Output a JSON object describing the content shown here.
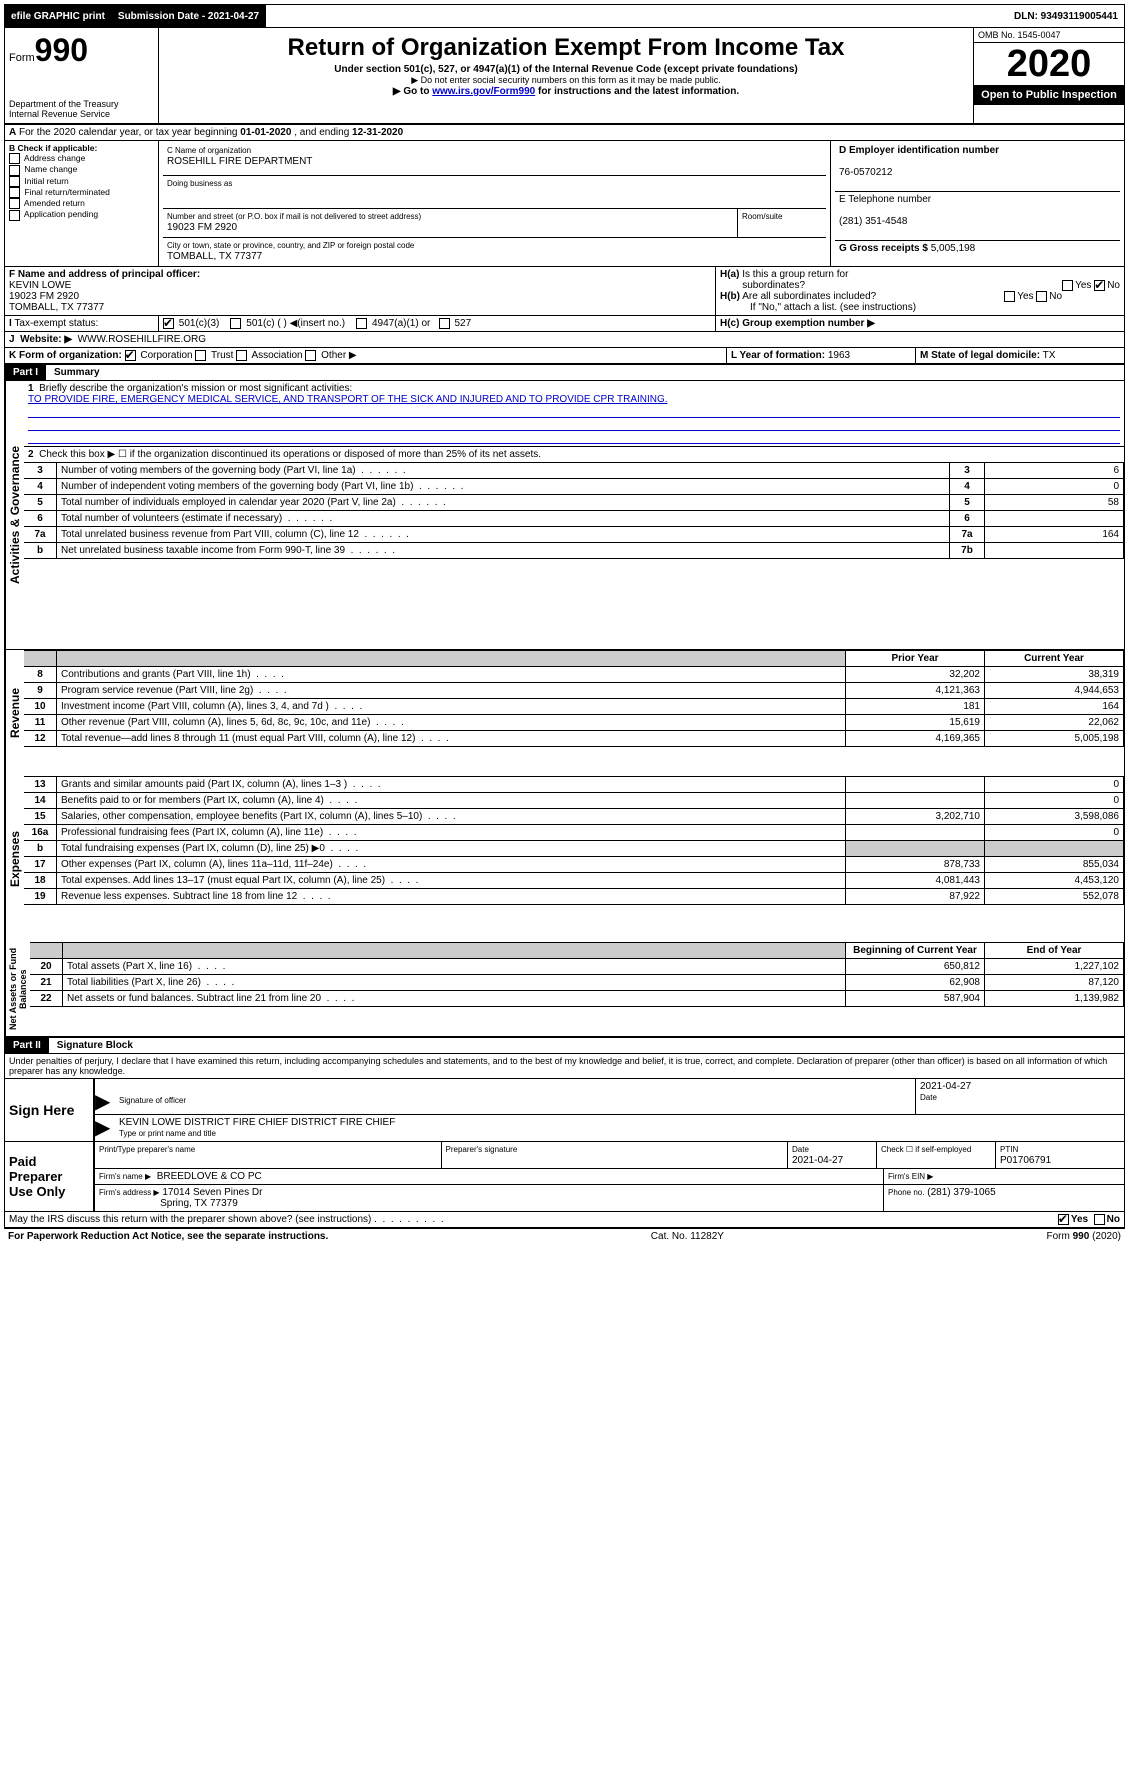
{
  "topbar": {
    "efile": "efile GRAPHIC print",
    "submission_label": "Submission Date - 2021-04-27",
    "dln": "DLN: 93493119005441"
  },
  "header": {
    "form_prefix": "Form",
    "form_number": "990",
    "dept": "Department of the Treasury",
    "irs": "Internal Revenue Service",
    "title": "Return of Organization Exempt From Income Tax",
    "sub1": "Under section 501(c), 527, or 4947(a)(1) of the Internal Revenue Code (except private foundations)",
    "sub2": "▶ Do not enter social security numbers on this form as it may be made public.",
    "sub3_pre": "▶ Go to ",
    "sub3_link": "www.irs.gov/Form990",
    "sub3_post": " for instructions and the latest information.",
    "omb": "OMB No. 1545-0047",
    "year": "2020",
    "open": "Open to Public Inspection"
  },
  "periodA": {
    "text_pre": "For the 2020 calendar year, or tax year beginning ",
    "begin": "01-01-2020",
    "mid": " , and ending ",
    "end": "12-31-2020"
  },
  "boxB": {
    "label": "B Check if applicable:",
    "items": [
      "Address change",
      "Name change",
      "Initial return",
      "Final return/terminated",
      "Amended return",
      "Application pending"
    ]
  },
  "boxC": {
    "name_label": "C Name of organization",
    "name": "ROSEHILL FIRE DEPARTMENT",
    "dba_label": "Doing business as",
    "addr_label": "Number and street (or P.O. box if mail is not delivered to street address)",
    "room_label": "Room/suite",
    "addr": "19023 FM 2920",
    "city_label": "City or town, state or province, country, and ZIP or foreign postal code",
    "city": "TOMBALL, TX  77377"
  },
  "boxD": {
    "label": "D Employer identification number",
    "value": "76-0570212"
  },
  "boxE": {
    "label": "E Telephone number",
    "value": "(281) 351-4548"
  },
  "boxG": {
    "label": "G Gross receipts $",
    "value": "5,005,198"
  },
  "boxF": {
    "label": "F Name and address of principal officer:",
    "name": "KEVIN LOWE",
    "addr1": "19023 FM 2920",
    "addr2": "TOMBALL, TX  77377"
  },
  "boxH": {
    "a_label": "H(a)  Is this a group return for subordinates?",
    "b_label": "H(b)  Are all subordinates included?",
    "b_note": "If \"No,\" attach a list. (see instructions)",
    "c_label": "H(c)  Group exemption number ▶",
    "yes": "Yes",
    "no": "No"
  },
  "boxI": {
    "label": "Tax-exempt status:",
    "opt1": "501(c)(3)",
    "opt2": "501(c) (  ) ◀(insert no.)",
    "opt3": "4947(a)(1) or",
    "opt4": "527"
  },
  "boxJ": {
    "label": "Website: ▶",
    "value": "WWW.ROSEHILLFIRE.ORG"
  },
  "boxK": {
    "label": "K Form of organization:",
    "opts": [
      "Corporation",
      "Trust",
      "Association",
      "Other ▶"
    ]
  },
  "boxL": {
    "label": "L Year of formation:",
    "value": "1963"
  },
  "boxM": {
    "label": "M State of legal domicile:",
    "value": "TX"
  },
  "part1": {
    "header": "Part I",
    "title": "Summary",
    "line1_label": "Briefly describe the organization's mission or most significant activities:",
    "line1_value": "TO PROVIDE FIRE, EMERGENCY MEDICAL SERVICE, AND TRANSPORT OF THE SICK AND INJURED AND TO PROVIDE CPR TRAINING.",
    "line2": "Check this box ▶ ☐  if the organization discontinued its operations or disposed of more than 25% of its net assets.",
    "sections": {
      "gov_label": "Activities & Governance",
      "rev_label": "Revenue",
      "exp_label": "Expenses",
      "net_label": "Net Assets or Fund Balances"
    },
    "col_headers": {
      "prior": "Prior Year",
      "current": "Current Year",
      "begin": "Beginning of Current Year",
      "end": "End of Year"
    },
    "rows": [
      {
        "n": "3",
        "d": "Number of voting members of the governing body (Part VI, line 1a)",
        "ref": "3",
        "v": "6"
      },
      {
        "n": "4",
        "d": "Number of independent voting members of the governing body (Part VI, line 1b)",
        "ref": "4",
        "v": "0"
      },
      {
        "n": "5",
        "d": "Total number of individuals employed in calendar year 2020 (Part V, line 2a)",
        "ref": "5",
        "v": "58"
      },
      {
        "n": "6",
        "d": "Total number of volunteers (estimate if necessary)",
        "ref": "6",
        "v": ""
      },
      {
        "n": "7a",
        "d": "Total unrelated business revenue from Part VIII, column (C), line 12",
        "ref": "7a",
        "v": "164"
      },
      {
        "n": "b",
        "d": "Net unrelated business taxable income from Form 990-T, line 39",
        "ref": "7b",
        "v": ""
      }
    ],
    "rev_rows": [
      {
        "n": "8",
        "d": "Contributions and grants (Part VIII, line 1h)",
        "p": "32,202",
        "c": "38,319"
      },
      {
        "n": "9",
        "d": "Program service revenue (Part VIII, line 2g)",
        "p": "4,121,363",
        "c": "4,944,653"
      },
      {
        "n": "10",
        "d": "Investment income (Part VIII, column (A), lines 3, 4, and 7d )",
        "p": "181",
        "c": "164"
      },
      {
        "n": "11",
        "d": "Other revenue (Part VIII, column (A), lines 5, 6d, 8c, 9c, 10c, and 11e)",
        "p": "15,619",
        "c": "22,062"
      },
      {
        "n": "12",
        "d": "Total revenue—add lines 8 through 11 (must equal Part VIII, column (A), line 12)",
        "p": "4,169,365",
        "c": "5,005,198"
      }
    ],
    "exp_rows": [
      {
        "n": "13",
        "d": "Grants and similar amounts paid (Part IX, column (A), lines 1–3 )",
        "p": "",
        "c": "0"
      },
      {
        "n": "14",
        "d": "Benefits paid to or for members (Part IX, column (A), line 4)",
        "p": "",
        "c": "0"
      },
      {
        "n": "15",
        "d": "Salaries, other compensation, employee benefits (Part IX, column (A), lines 5–10)",
        "p": "3,202,710",
        "c": "3,598,086"
      },
      {
        "n": "16a",
        "d": "Professional fundraising fees (Part IX, column (A), line 11e)",
        "p": "",
        "c": "0"
      },
      {
        "n": "b",
        "d": "Total fundraising expenses (Part IX, column (D), line 25) ▶0",
        "p": "shade",
        "c": "shade"
      },
      {
        "n": "17",
        "d": "Other expenses (Part IX, column (A), lines 11a–11d, 11f–24e)",
        "p": "878,733",
        "c": "855,034"
      },
      {
        "n": "18",
        "d": "Total expenses. Add lines 13–17 (must equal Part IX, column (A), line 25)",
        "p": "4,081,443",
        "c": "4,453,120"
      },
      {
        "n": "19",
        "d": "Revenue less expenses. Subtract line 18 from line 12",
        "p": "87,922",
        "c": "552,078"
      }
    ],
    "net_rows": [
      {
        "n": "20",
        "d": "Total assets (Part X, line 16)",
        "p": "650,812",
        "c": "1,227,102"
      },
      {
        "n": "21",
        "d": "Total liabilities (Part X, line 26)",
        "p": "62,908",
        "c": "87,120"
      },
      {
        "n": "22",
        "d": "Net assets or fund balances. Subtract line 21 from line 20",
        "p": "587,904",
        "c": "1,139,982"
      }
    ]
  },
  "part2": {
    "header": "Part II",
    "title": "Signature Block",
    "perjury": "Under penalties of perjury, I declare that I have examined this return, including accompanying schedules and statements, and to the best of my knowledge and belief, it is true, correct, and complete. Declaration of preparer (other than officer) is based on all information of which preparer has any knowledge.",
    "sign_here": "Sign Here",
    "sig_officer": "Signature of officer",
    "sig_date": "2021-04-27",
    "date_label": "Date",
    "officer_name": "KEVIN LOWE DISTRICT FIRE CHIEF DISTRICT FIRE CHIEF",
    "type_name": "Type or print name and title",
    "paid": "Paid Preparer Use Only",
    "prep_name_label": "Print/Type preparer's name",
    "prep_sig_label": "Preparer's signature",
    "prep_date": "2021-04-27",
    "check_self": "Check ☐ if self-employed",
    "ptin_label": "PTIN",
    "ptin": "P01706791",
    "firm_name_label": "Firm's name    ▶",
    "firm_name": "BREEDLOVE & CO PC",
    "firm_ein_label": "Firm's EIN ▶",
    "firm_addr_label": "Firm's address ▶",
    "firm_addr1": "17014 Seven Pines Dr",
    "firm_addr2": "Spring, TX  77379",
    "phone_label": "Phone no.",
    "phone": "(281) 379-1065",
    "discuss": "May the IRS discuss this return with the preparer shown above? (see instructions)",
    "paperwork": "For Paperwork Reduction Act Notice, see the separate instructions.",
    "cat": "Cat. No. 11282Y",
    "form_foot": "Form 990 (2020)"
  }
}
